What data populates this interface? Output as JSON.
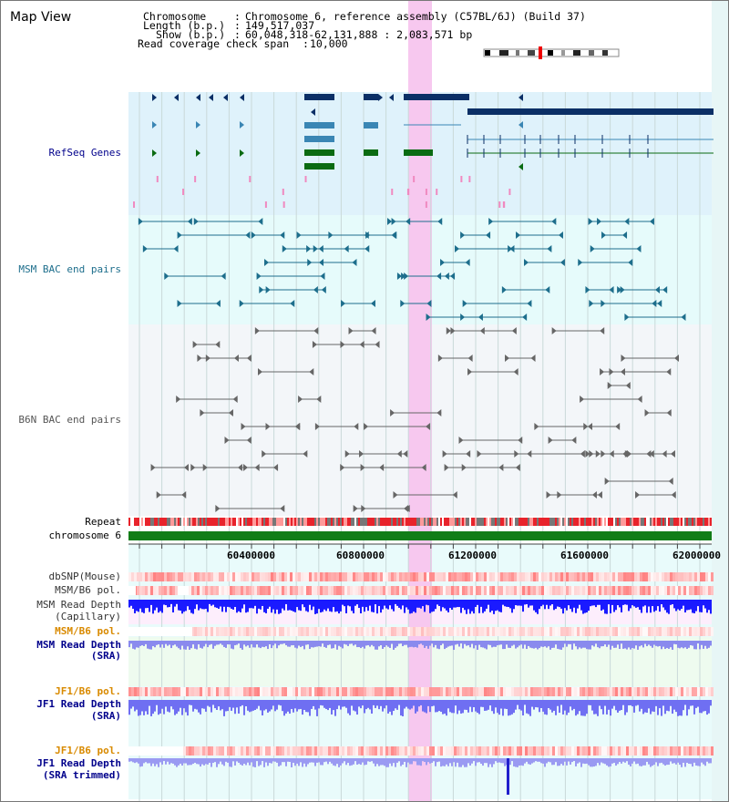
{
  "header": {
    "map_title": "Map View",
    "chromosome_label": "Chromosome",
    "chromosome_value": "Chromosome 6, reference assembly (C57BL/6J) (Build 37)",
    "length_label": "Length (b.p.)",
    "length_value": "149,517,037",
    "show_label": "Show (b.p.)",
    "show_value": "60,048,318-62,131,888 : 2,083,571 bp",
    "read_coverage_label": "Read coverage check span",
    "read_coverage_value": "10,000"
  },
  "tracks": {
    "refseq": "RefSeq Genes",
    "msm_bac": "MSM BAC end pairs",
    "b6n_bac": "B6N BAC end pairs",
    "repeat": "Repeat",
    "chromosome": "chromosome 6",
    "dbsnp": "dbSNP(Mouse)",
    "msm_b6_pol_1": "MSM/B6 pol.",
    "msm_read_depth_cap_1": "MSM Read Depth",
    "msm_read_depth_cap_2": "(Capillary)",
    "msm_b6_pol_2": "MSM/B6 pol.",
    "msm_read_depth_sra_1": "MSM Read Depth",
    "msm_read_depth_sra_2": "(SRA)",
    "jf1_b6_pol_1": "JF1/B6 pol.",
    "jf1_read_depth_sra_1": "JF1 Read Depth",
    "jf1_read_depth_sra_2": "(SRA)",
    "jf1_b6_pol_2": "JF1/B6 pol.",
    "jf1_read_depth_trim_1": "JF1 Read Depth",
    "jf1_read_depth_trim_2": "(SRA trimmed)"
  },
  "axis": {
    "range": [
      60048318,
      62131888
    ],
    "ticks": [
      "60400000",
      "60800000",
      "61200000",
      "61600000",
      "62000000"
    ]
  },
  "colors": {
    "refseq_bg": "#dff2fb",
    "msm_bg": "#e6fbfb",
    "b6n_bg": "#f3f6f9",
    "highlight": "#f7c8ef",
    "gene_dark": "#0b2f66",
    "gene_mid": "#3a86b4",
    "gene_green": "#0a6b12",
    "msm_bac": "#1d6e8c",
    "b6n_bac": "#666666",
    "chromosome": "#117d17",
    "depth_blue": "#1a1aff",
    "label_blue": "#00008b",
    "label_orange": "#d98a00",
    "label_gray": "#333333"
  }
}
